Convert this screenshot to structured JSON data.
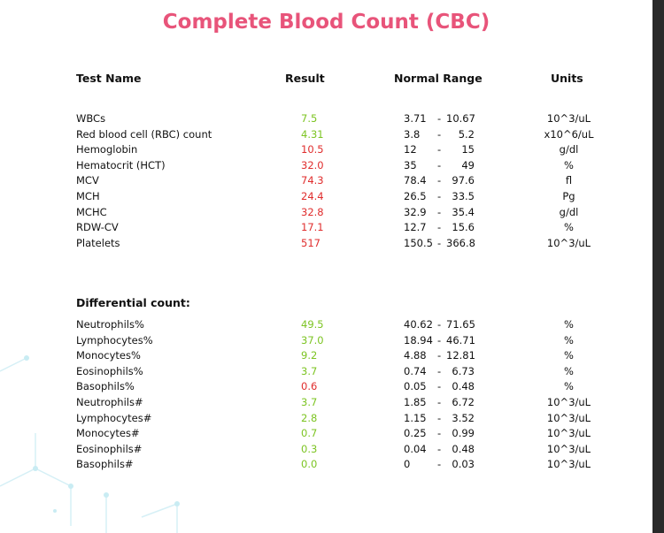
{
  "title": "Complete Blood Count (CBC)",
  "headers": {
    "test_name": "Test Name",
    "result": "Result",
    "normal_range": "Normal Range",
    "units": "Units"
  },
  "colors": {
    "title": "#e8547a",
    "normal": "#7cc422",
    "abnormal": "#e02d2d"
  },
  "cbc_rows": [
    {
      "name": "WBCs",
      "result": "7.5",
      "low": "3.71",
      "high": "10.67",
      "unit": "10^3/uL",
      "status": "normal"
    },
    {
      "name": "Red blood cell (RBC) count",
      "result": "4.31",
      "low": "3.8",
      "high": "5.2",
      "unit": "x10^6/uL",
      "status": "normal"
    },
    {
      "name": "Hemoglobin",
      "result": "10.5",
      "low": "12",
      "high": "15",
      "unit": "g/dl",
      "status": "abnormal"
    },
    {
      "name": "Hematocrit (HCT)",
      "result": "32.0",
      "low": "35",
      "high": "49",
      "unit": "%",
      "status": "abnormal"
    },
    {
      "name": "MCV",
      "result": "74.3",
      "low": "78.4",
      "high": "97.6",
      "unit": "fl",
      "status": "abnormal"
    },
    {
      "name": "MCH",
      "result": "24.4",
      "low": "26.5",
      "high": "33.5",
      "unit": "Pg",
      "status": "abnormal"
    },
    {
      "name": "MCHC",
      "result": "32.8",
      "low": "32.9",
      "high": "35.4",
      "unit": "g/dl",
      "status": "abnormal"
    },
    {
      "name": "RDW-CV",
      "result": "17.1",
      "low": "12.7",
      "high": "15.6",
      "unit": "%",
      "status": "abnormal"
    },
    {
      "name": "Platelets",
      "result": "517",
      "low": "150.5",
      "high": "366.8",
      "unit": "10^3/uL",
      "status": "abnormal"
    }
  ],
  "differential_title": "Differential count:",
  "diff_rows": [
    {
      "name": "Neutrophils%",
      "result": "49.5",
      "low": "40.62",
      "high": "71.65",
      "unit": "%",
      "status": "normal"
    },
    {
      "name": "Lymphocytes%",
      "result": "37.0",
      "low": "18.94",
      "high": "46.71",
      "unit": "%",
      "status": "normal"
    },
    {
      "name": "Monocytes%",
      "result": "9.2",
      "low": "4.88",
      "high": "12.81",
      "unit": "%",
      "status": "normal"
    },
    {
      "name": "Eosinophils%",
      "result": "3.7",
      "low": "0.74",
      "high": "6.73",
      "unit": "%",
      "status": "normal"
    },
    {
      "name": "Basophils%",
      "result": "0.6",
      "low": "0.05",
      "high": "0.48",
      "unit": "%",
      "status": "abnormal"
    },
    {
      "name": "Neutrophils#",
      "result": "3.7",
      "low": "1.85",
      "high": "6.72",
      "unit": "10^3/uL",
      "status": "normal"
    },
    {
      "name": "Lymphocytes#",
      "result": "2.8",
      "low": "1.15",
      "high": "3.52",
      "unit": "10^3/uL",
      "status": "normal"
    },
    {
      "name": "Monocytes#",
      "result": "0.7",
      "low": "0.25",
      "high": "0.99",
      "unit": "10^3/uL",
      "status": "normal"
    },
    {
      "name": "Eosinophils#",
      "result": "0.3",
      "low": "0.04",
      "high": "0.48",
      "unit": "10^3/uL",
      "status": "normal"
    },
    {
      "name": "Basophils#",
      "result": "0.0",
      "low": "0",
      "high": "0.03",
      "unit": "10^3/uL",
      "status": "normal"
    }
  ]
}
